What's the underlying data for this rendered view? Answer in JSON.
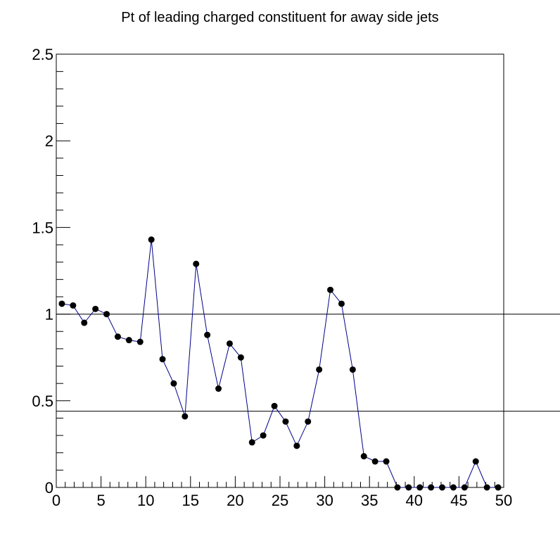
{
  "chart_data": {
    "type": "line",
    "title": "Pt of leading charged constituent for away side jets",
    "xlabel": "",
    "ylabel": "",
    "xlim": [
      0,
      50
    ],
    "ylim": [
      0,
      2.5
    ],
    "x_tick_labels": [
      "0",
      "5",
      "10",
      "15",
      "20",
      "25",
      "30",
      "35",
      "40",
      "45",
      "50"
    ],
    "y_tick_labels": [
      "0",
      "0.5",
      "1",
      "1.5",
      "2",
      "2.5"
    ],
    "grid": false,
    "line_color": "#00008b",
    "marker_color": "#000000",
    "reference_lines": [
      1.0,
      0.44
    ],
    "series": [
      {
        "x": [
          0.625,
          1.875,
          3.125,
          4.375,
          5.625,
          6.875,
          8.125,
          9.375,
          10.625,
          11.875,
          13.125,
          14.375,
          15.625,
          16.875,
          18.125,
          19.375,
          20.625,
          21.875,
          23.125,
          24.375,
          25.625,
          26.875,
          28.125,
          29.375,
          30.625,
          31.875,
          33.125,
          34.375,
          35.625,
          36.875,
          38.125,
          39.375,
          40.625,
          41.875,
          43.125,
          44.375,
          45.625,
          46.875,
          48.125,
          49.375
        ],
        "values": [
          1.06,
          1.05,
          0.95,
          1.03,
          1.0,
          0.87,
          0.85,
          0.84,
          1.43,
          0.74,
          0.6,
          0.41,
          1.29,
          0.88,
          0.57,
          0.83,
          0.75,
          0.26,
          0.3,
          0.47,
          0.38,
          0.24,
          0.38,
          0.68,
          1.14,
          1.06,
          0.68,
          0.18,
          0.15,
          0.15,
          0.0,
          0.0,
          0.0,
          0.0,
          0.0,
          0.0,
          0.0,
          0.15,
          0.0,
          0.0
        ]
      }
    ]
  }
}
